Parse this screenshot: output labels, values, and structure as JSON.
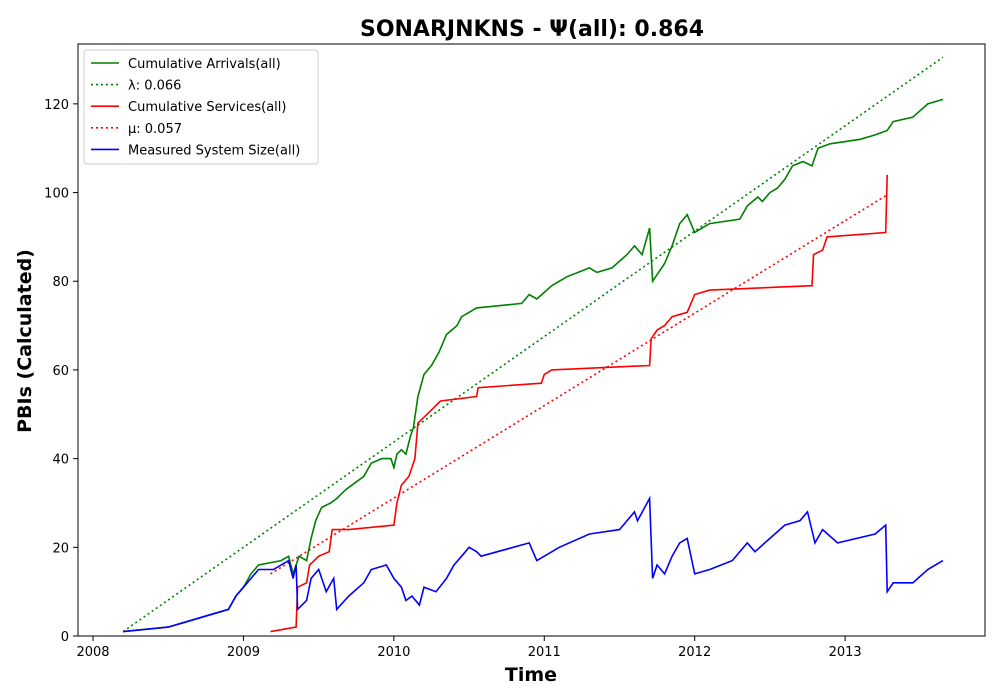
{
  "chart_data": {
    "type": "line",
    "title": "SONARJNKNS -  Ψ(all): 0.864",
    "xlabel": "Time",
    "ylabel": "PBIs (Calculated)",
    "xlim": [
      2007.9,
      2013.93
    ],
    "ylim": [
      0,
      133.5
    ],
    "x_ticks": [
      2008,
      2009,
      2010,
      2011,
      2012,
      2013
    ],
    "x_tick_labels": [
      "2008",
      "2009",
      "2010",
      "2011",
      "2012",
      "2013"
    ],
    "y_ticks": [
      0,
      20,
      40,
      60,
      80,
      100,
      120
    ],
    "y_tick_labels": [
      "0",
      "20",
      "40",
      "60",
      "80",
      "100",
      "120"
    ],
    "legend_position": "top-left",
    "series": [
      {
        "name": "Cumulative Arrivals(all)",
        "color": "#008000",
        "style": "solid",
        "points": [
          [
            2008.2,
            1
          ],
          [
            2008.5,
            2
          ],
          [
            2008.6,
            3
          ],
          [
            2008.8,
            5
          ],
          [
            2008.9,
            6
          ],
          [
            2008.95,
            9
          ],
          [
            2009.0,
            11
          ],
          [
            2009.05,
            14
          ],
          [
            2009.1,
            16
          ],
          [
            2009.25,
            17
          ],
          [
            2009.3,
            18
          ],
          [
            2009.33,
            14
          ],
          [
            2009.37,
            18
          ],
          [
            2009.42,
            17
          ],
          [
            2009.45,
            22
          ],
          [
            2009.48,
            26
          ],
          [
            2009.52,
            29
          ],
          [
            2009.58,
            30
          ],
          [
            2009.62,
            31
          ],
          [
            2009.68,
            33
          ],
          [
            2009.72,
            34
          ],
          [
            2009.8,
            36
          ],
          [
            2009.85,
            39
          ],
          [
            2009.92,
            40
          ],
          [
            2009.98,
            40
          ],
          [
            2010.0,
            38
          ],
          [
            2010.02,
            41
          ],
          [
            2010.05,
            42
          ],
          [
            2010.08,
            41
          ],
          [
            2010.11,
            45
          ],
          [
            2010.13,
            47
          ],
          [
            2010.16,
            54
          ],
          [
            2010.2,
            59
          ],
          [
            2010.25,
            61
          ],
          [
            2010.3,
            64
          ],
          [
            2010.35,
            68
          ],
          [
            2010.42,
            70
          ],
          [
            2010.45,
            72
          ],
          [
            2010.5,
            73
          ],
          [
            2010.55,
            74
          ],
          [
            2010.85,
            75
          ],
          [
            2010.9,
            77
          ],
          [
            2010.95,
            76
          ],
          [
            2011.05,
            79
          ],
          [
            2011.15,
            81
          ],
          [
            2011.3,
            83
          ],
          [
            2011.35,
            82
          ],
          [
            2011.45,
            83
          ],
          [
            2011.55,
            86
          ],
          [
            2011.6,
            88
          ],
          [
            2011.65,
            86
          ],
          [
            2011.7,
            92
          ],
          [
            2011.72,
            80
          ],
          [
            2011.76,
            82
          ],
          [
            2011.8,
            84
          ],
          [
            2011.85,
            88
          ],
          [
            2011.9,
            93
          ],
          [
            2011.95,
            95
          ],
          [
            2012.0,
            91
          ],
          [
            2012.1,
            93
          ],
          [
            2012.3,
            94
          ],
          [
            2012.35,
            97
          ],
          [
            2012.42,
            99
          ],
          [
            2012.45,
            98
          ],
          [
            2012.5,
            100
          ],
          [
            2012.55,
            101
          ],
          [
            2012.6,
            103
          ],
          [
            2012.65,
            106
          ],
          [
            2012.72,
            107
          ],
          [
            2012.78,
            106
          ],
          [
            2012.82,
            110
          ],
          [
            2012.9,
            111
          ],
          [
            2013.1,
            112
          ],
          [
            2013.2,
            113
          ],
          [
            2013.28,
            114
          ],
          [
            2013.32,
            116
          ],
          [
            2013.45,
            117
          ],
          [
            2013.55,
            120
          ],
          [
            2013.65,
            121
          ]
        ]
      },
      {
        "name": "λ: 0.066",
        "color": "#008000",
        "style": "dotted",
        "points": [
          [
            2008.2,
            1
          ],
          [
            2013.65,
            130.5
          ]
        ]
      },
      {
        "name": "Cumulative Services(all)",
        "color": "#ff0000",
        "style": "solid",
        "points": [
          [
            2009.18,
            1
          ],
          [
            2009.35,
            2
          ],
          [
            2009.36,
            11
          ],
          [
            2009.42,
            12
          ],
          [
            2009.44,
            16
          ],
          [
            2009.5,
            18
          ],
          [
            2009.57,
            19
          ],
          [
            2009.59,
            24
          ],
          [
            2009.7,
            24
          ],
          [
            2010.0,
            25
          ],
          [
            2010.02,
            30
          ],
          [
            2010.05,
            34
          ],
          [
            2010.1,
            36
          ],
          [
            2010.14,
            40
          ],
          [
            2010.16,
            48
          ],
          [
            2010.22,
            50
          ],
          [
            2010.28,
            52
          ],
          [
            2010.31,
            53
          ],
          [
            2010.55,
            54
          ],
          [
            2010.56,
            56
          ],
          [
            2010.98,
            57
          ],
          [
            2011.0,
            59
          ],
          [
            2011.05,
            60
          ],
          [
            2011.7,
            61
          ],
          [
            2011.71,
            67
          ],
          [
            2011.75,
            69
          ],
          [
            2011.8,
            70
          ],
          [
            2011.85,
            72
          ],
          [
            2011.95,
            73
          ],
          [
            2012.0,
            77
          ],
          [
            2012.1,
            78
          ],
          [
            2012.78,
            79
          ],
          [
            2012.79,
            86
          ],
          [
            2012.85,
            87
          ],
          [
            2012.88,
            90
          ],
          [
            2013.27,
            91
          ],
          [
            2013.28,
            104
          ]
        ]
      },
      {
        "name": "μ: 0.057",
        "color": "#ff0000",
        "style": "dotted",
        "points": [
          [
            2009.18,
            14
          ],
          [
            2013.28,
            99.5
          ]
        ]
      },
      {
        "name": "Measured System Size(all)",
        "color": "#0000ff",
        "style": "solid",
        "points": [
          [
            2008.2,
            1
          ],
          [
            2008.5,
            2
          ],
          [
            2008.6,
            3
          ],
          [
            2008.8,
            5
          ],
          [
            2008.9,
            6
          ],
          [
            2008.95,
            9
          ],
          [
            2009.0,
            11
          ],
          [
            2009.05,
            13
          ],
          [
            2009.1,
            15
          ],
          [
            2009.2,
            15
          ],
          [
            2009.3,
            17
          ],
          [
            2009.33,
            13
          ],
          [
            2009.35,
            16
          ],
          [
            2009.36,
            6
          ],
          [
            2009.42,
            8
          ],
          [
            2009.45,
            13
          ],
          [
            2009.5,
            15
          ],
          [
            2009.55,
            10
          ],
          [
            2009.6,
            13
          ],
          [
            2009.62,
            6
          ],
          [
            2009.7,
            9
          ],
          [
            2009.8,
            12
          ],
          [
            2009.85,
            15
          ],
          [
            2009.95,
            16
          ],
          [
            2010.0,
            13
          ],
          [
            2010.05,
            11
          ],
          [
            2010.08,
            8
          ],
          [
            2010.12,
            9
          ],
          [
            2010.17,
            7
          ],
          [
            2010.2,
            11
          ],
          [
            2010.28,
            10
          ],
          [
            2010.35,
            13
          ],
          [
            2010.4,
            16
          ],
          [
            2010.45,
            18
          ],
          [
            2010.5,
            20
          ],
          [
            2010.55,
            19
          ],
          [
            2010.58,
            18
          ],
          [
            2010.9,
            21
          ],
          [
            2010.95,
            17
          ],
          [
            2011.0,
            18
          ],
          [
            2011.1,
            20
          ],
          [
            2011.3,
            23
          ],
          [
            2011.5,
            24
          ],
          [
            2011.6,
            28
          ],
          [
            2011.62,
            26
          ],
          [
            2011.7,
            31
          ],
          [
            2011.72,
            13
          ],
          [
            2011.75,
            16
          ],
          [
            2011.8,
            14
          ],
          [
            2011.85,
            18
          ],
          [
            2011.9,
            21
          ],
          [
            2011.95,
            22
          ],
          [
            2012.0,
            14
          ],
          [
            2012.1,
            15
          ],
          [
            2012.25,
            17
          ],
          [
            2012.35,
            21
          ],
          [
            2012.4,
            19
          ],
          [
            2012.5,
            22
          ],
          [
            2012.6,
            25
          ],
          [
            2012.7,
            26
          ],
          [
            2012.75,
            28
          ],
          [
            2012.8,
            21
          ],
          [
            2012.85,
            24
          ],
          [
            2012.95,
            21
          ],
          [
            2013.2,
            23
          ],
          [
            2013.27,
            25
          ],
          [
            2013.28,
            10
          ],
          [
            2013.32,
            12
          ],
          [
            2013.45,
            12
          ],
          [
            2013.55,
            15
          ],
          [
            2013.65,
            17
          ]
        ]
      }
    ]
  }
}
